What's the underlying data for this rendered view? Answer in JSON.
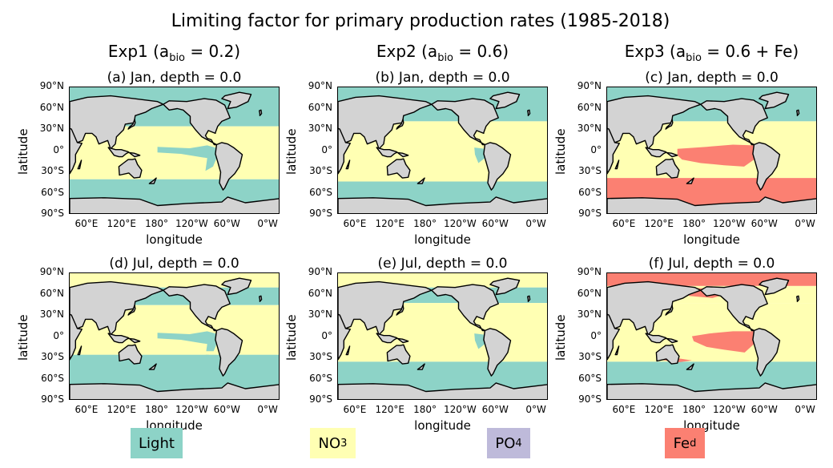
{
  "title": "Limiting factor for primary production rates (1985-2018)",
  "colors": {
    "Light": "#8dd3c7",
    "NO3": "#ffffb3",
    "PO4": "#bebada",
    "Fe": "#fb8072",
    "land": "#d3d3d3",
    "coast": "#000000"
  },
  "columns": [
    {
      "prefix": "Exp1 (a",
      "sub": "bio",
      "suffix": " = 0.2)"
    },
    {
      "prefix": "Exp2 (a",
      "sub": "bio",
      "suffix": " = 0.6)"
    },
    {
      "prefix": "Exp3 (a",
      "sub": "bio",
      "suffix": " = 0.6 + Fe)"
    }
  ],
  "panels": [
    {
      "title": "(a)  Jan, depth = 0.0",
      "scenario": "exp1_jan"
    },
    {
      "title": "(b)  Jan, depth = 0.0",
      "scenario": "exp2_jan"
    },
    {
      "title": "(c)  Jan, depth = 0.0",
      "scenario": "exp3_jan"
    },
    {
      "title": "(d)  Jul, depth = 0.0",
      "scenario": "exp1_jul"
    },
    {
      "title": "(e)  Jul, depth = 0.0",
      "scenario": "exp2_jul"
    },
    {
      "title": "(f)  Jul, depth = 0.0",
      "scenario": "exp3_jul"
    }
  ],
  "axes": {
    "xlabel": "longitude",
    "ylabel": "latitude",
    "yticks": [
      "90°N",
      "60°N",
      "30°N",
      "0°",
      "30°S",
      "60°S",
      "90°S"
    ],
    "xticks": [
      "60°E",
      "120°E",
      "180°",
      "120°W",
      "60°W",
      "0°W"
    ]
  },
  "legend": [
    {
      "label": "Light",
      "color_key": "Light",
      "sub": ""
    },
    {
      "label": "NO",
      "color_key": "NO3",
      "sub": "3"
    },
    {
      "label": "PO",
      "color_key": "PO4",
      "sub": "4"
    },
    {
      "label": "Fe",
      "color_key": "Fe",
      "sub": "d"
    }
  ]
}
